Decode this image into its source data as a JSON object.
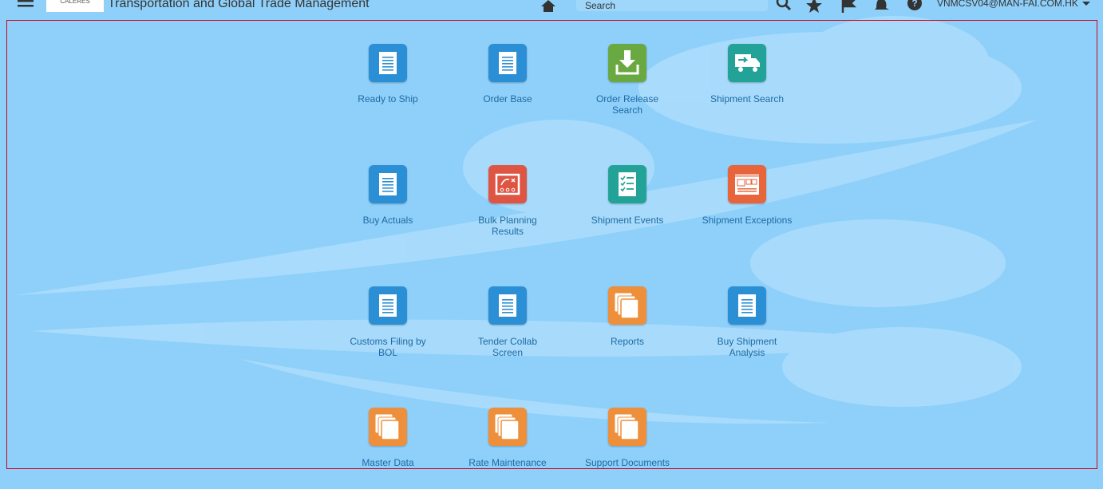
{
  "header": {
    "logo": "CALERES",
    "title": "Transportation and Global Trade Management",
    "search_placeholder": "Search",
    "user": "VNMCSV04@MAN-FAI.COM.HK"
  },
  "tiles": [
    {
      "label": "Ready to Ship",
      "icon": "doc",
      "color": "#2b8fd6"
    },
    {
      "label": "Order Base",
      "icon": "doc",
      "color": "#2b8fd6"
    },
    {
      "label": "Order Release Search",
      "icon": "download",
      "color": "#6aa842"
    },
    {
      "label": "Shipment Search",
      "icon": "truck",
      "color": "#23a397"
    },
    {
      "label": "Buy Actuals",
      "icon": "doc",
      "color": "#2b8fd6"
    },
    {
      "label": "Bulk Planning Results",
      "icon": "plan",
      "color": "#df5544"
    },
    {
      "label": "Shipment Events",
      "icon": "check",
      "color": "#23a397"
    },
    {
      "label": "Shipment Exceptions",
      "icon": "window",
      "color": "#e8643a"
    },
    {
      "label": "Customs Filing by BOL",
      "icon": "doc",
      "color": "#2b8fd6"
    },
    {
      "label": "Tender Collab Screen",
      "icon": "doc",
      "color": "#2b8fd6"
    },
    {
      "label": "Reports",
      "icon": "stack",
      "color": "#ee8f3b"
    },
    {
      "label": "Buy Shipment Analysis",
      "icon": "doc",
      "color": "#2b8fd6"
    },
    {
      "label": "Master Data",
      "icon": "stack",
      "color": "#ee8f3b"
    },
    {
      "label": "Rate Maintenance",
      "icon": "stack",
      "color": "#ee8f3b"
    },
    {
      "label": "Support Documents",
      "icon": "stack",
      "color": "#ee8f3b"
    }
  ]
}
